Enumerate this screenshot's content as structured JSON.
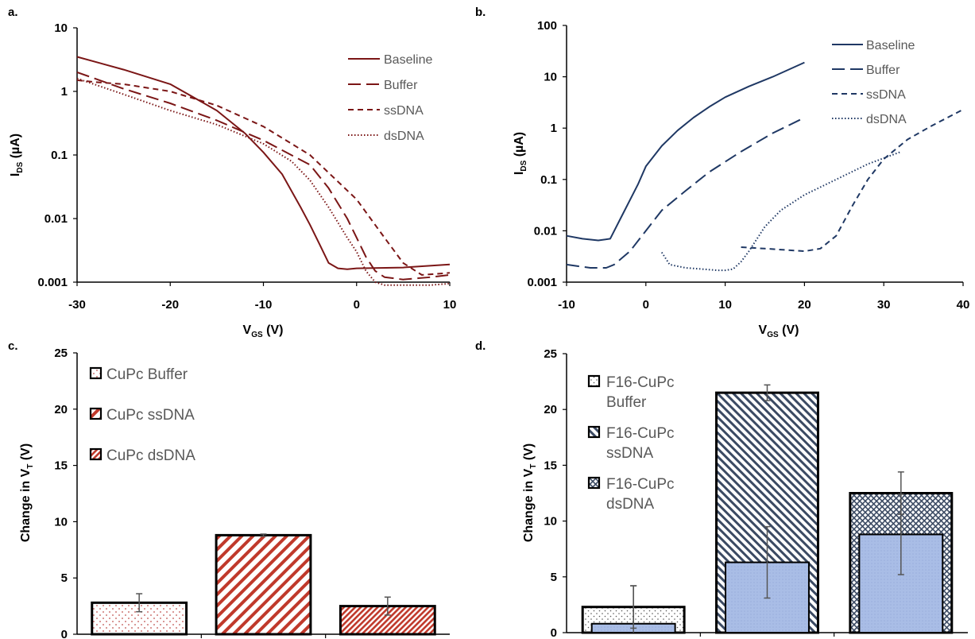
{
  "chart_data": [
    {
      "panel": "a.",
      "type": "line",
      "yscale": "log",
      "xlim": [
        -30,
        10
      ],
      "ylim": [
        0.001,
        10
      ],
      "xticks": [
        "-30",
        "-20",
        "-10",
        "0",
        "10"
      ],
      "yticks": [
        "0.001",
        "0.01",
        "0.1",
        "1",
        "10"
      ],
      "xlabel": {
        "main": "V",
        "sub": "GS",
        "unit": " (V)"
      },
      "ylabel": {
        "main": "I",
        "sub": "DS",
        "unit": " (µA)"
      },
      "legend_position": "top-right",
      "color": "#7b1616",
      "series": [
        {
          "name": "Baseline",
          "dash": "solid",
          "x": [
            -30,
            -25,
            -20,
            -15,
            -12,
            -10,
            -8,
            -6,
            -5,
            -4,
            -3,
            -2,
            -1,
            0,
            5,
            10
          ],
          "y": [
            3.5,
            2.2,
            1.3,
            0.5,
            0.22,
            0.11,
            0.05,
            0.015,
            0.008,
            0.004,
            0.002,
            0.00165,
            0.0016,
            0.00165,
            0.0017,
            0.0019
          ]
        },
        {
          "name": "Buffer",
          "dash": "long-dash",
          "x": [
            -30,
            -25,
            -20,
            -15,
            -10,
            -5,
            -3,
            -1,
            0,
            1,
            2,
            3,
            5,
            8,
            10
          ],
          "y": [
            2.0,
            1.1,
            0.65,
            0.35,
            0.17,
            0.07,
            0.03,
            0.01,
            0.005,
            0.0025,
            0.0015,
            0.0012,
            0.0011,
            0.0012,
            0.0013
          ]
        },
        {
          "name": "ssDNA",
          "dash": "short-dash",
          "x": [
            -30,
            -28,
            -25,
            -20,
            -15,
            -10,
            -5,
            0,
            3,
            5,
            7,
            10
          ],
          "y": [
            1.5,
            1.4,
            1.3,
            1.0,
            0.6,
            0.28,
            0.1,
            0.02,
            0.005,
            0.002,
            0.0013,
            0.0014
          ]
        },
        {
          "name": "dsDNA",
          "dash": "dotted",
          "x": [
            -30,
            -25,
            -20,
            -15,
            -10,
            -7,
            -5,
            -3,
            -1,
            0,
            1,
            2,
            3,
            5,
            8,
            10
          ],
          "y": [
            1.6,
            0.9,
            0.5,
            0.3,
            0.15,
            0.08,
            0.04,
            0.015,
            0.005,
            0.003,
            0.0015,
            0.001,
            0.0009,
            0.0009,
            0.0009,
            0.00095
          ]
        }
      ]
    },
    {
      "panel": "b.",
      "type": "line",
      "yscale": "log",
      "xlim": [
        -10,
        40
      ],
      "ylim": [
        0.001,
        100
      ],
      "xticks": [
        "-10",
        "0",
        "10",
        "20",
        "30",
        "40"
      ],
      "yticks": [
        "0.001",
        "0.01",
        "0.1",
        "1",
        "10",
        "100"
      ],
      "xlabel": {
        "main": "V",
        "sub": "GS",
        "unit": " (V)"
      },
      "ylabel": {
        "main": "I",
        "sub": "DS",
        "unit": " (µA)"
      },
      "legend_position": "top-right",
      "color": "#1f3864",
      "series": [
        {
          "name": "Baseline",
          "dash": "solid",
          "x": [
            -10,
            -8,
            -6,
            -4.5,
            -3,
            -1,
            0,
            2,
            4,
            6,
            8,
            10,
            13,
            16,
            20
          ],
          "y": [
            0.008,
            0.007,
            0.0065,
            0.007,
            0.02,
            0.08,
            0.18,
            0.45,
            0.9,
            1.6,
            2.6,
            4,
            6.5,
            10,
            19
          ]
        },
        {
          "name": "Buffer",
          "dash": "long-dash",
          "x": [
            -10,
            -7,
            -5,
            -4,
            -2,
            0,
            2,
            5,
            8,
            12,
            16,
            20
          ],
          "y": [
            0.0022,
            0.0019,
            0.0019,
            0.0022,
            0.004,
            0.01,
            0.025,
            0.06,
            0.14,
            0.35,
            0.8,
            1.6
          ]
        },
        {
          "name": "ssDNA",
          "dash": "short-dash",
          "x": [
            12,
            15,
            18,
            20,
            22,
            24,
            26,
            28,
            30,
            33,
            36,
            40
          ],
          "y": [
            0.0048,
            0.0045,
            0.0042,
            0.004,
            0.0045,
            0.008,
            0.03,
            0.1,
            0.25,
            0.6,
            1.1,
            2.3
          ]
        },
        {
          "name": "dsDNA",
          "dash": "dotted",
          "x": [
            2,
            3,
            5,
            7,
            9,
            10,
            11,
            12,
            13,
            15,
            17,
            20,
            24,
            28,
            32
          ],
          "y": [
            0.0038,
            0.0022,
            0.0019,
            0.0018,
            0.0017,
            0.0017,
            0.0018,
            0.0025,
            0.004,
            0.012,
            0.025,
            0.05,
            0.1,
            0.2,
            0.34
          ]
        }
      ]
    },
    {
      "panel": "c.",
      "type": "bar",
      "ylim": [
        0,
        25
      ],
      "yticks": [
        "0",
        "5",
        "10",
        "15",
        "20",
        "25"
      ],
      "ylabel": {
        "main": "Change in V",
        "sub": "T",
        "unit": " (V)"
      },
      "legend_position": "top-left",
      "series": [
        {
          "name": "CuPc Buffer",
          "pattern": "dots-red",
          "value": 2.8,
          "error": 0.8
        },
        {
          "name": "CuPc ssDNA",
          "pattern": "diag-wide-red",
          "value": 8.8,
          "error": 0.1
        },
        {
          "name": "CuPc dsDNA",
          "pattern": "diag-dense-red",
          "value": 2.5,
          "error": 0.8
        }
      ]
    },
    {
      "panel": "d.",
      "type": "bar",
      "ylim": [
        0,
        25
      ],
      "yticks": [
        "0",
        "5",
        "10",
        "15",
        "20",
        "25"
      ],
      "ylabel": {
        "main": "Change in V",
        "sub": "T",
        "unit": " (V)"
      },
      "legend_position": "top-left",
      "series": [
        {
          "name": "F16-CuPc Buffer",
          "legend_lines": [
            "F16-CuPc",
            "Buffer"
          ],
          "pattern": "dots-gray",
          "value": 2.3,
          "error": 1.9
        },
        {
          "name": "F16-CuPc ssDNA",
          "legend_lines": [
            "F16-CuPc",
            "ssDNA"
          ],
          "pattern": "diag-navy",
          "value": 21.5,
          "error": 0.7
        },
        {
          "name": "F16-CuPc dsDNA",
          "legend_lines": [
            "F16-CuPc",
            "dsDNA"
          ],
          "pattern": "cross-navy",
          "value": 12.5,
          "error": 1.9
        }
      ],
      "overlay": {
        "color": "#a9bde6",
        "values": [
          0.8,
          6.3,
          8.8
        ],
        "errors": [
          3.4,
          3.2,
          3.6
        ]
      }
    }
  ]
}
